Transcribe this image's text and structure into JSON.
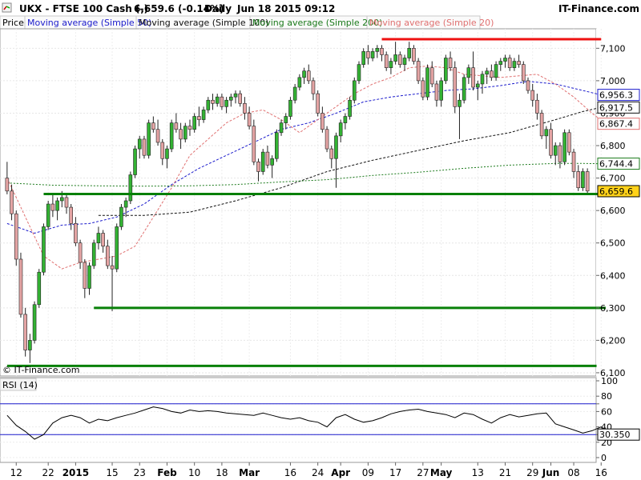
{
  "header": {
    "symbol": "UKX - FTSE 100 Cash (-)",
    "quote": "6,659.6 (-0.14%)",
    "period": "Daily",
    "datetime": "Jun 18 2015 09:12",
    "brand": "IT-Finance.com"
  },
  "legend": [
    {
      "label": "Price",
      "color": "#000000"
    },
    {
      "label": "Moving average (Simple 50)",
      "color": "#1a1acc"
    },
    {
      "label": "Moving average (Simple 100)",
      "color": "#111111"
    },
    {
      "label": "Moving average (Simple 200)",
      "color": "#1b7a1b"
    },
    {
      "label": "Moving average (Simple 20)",
      "color": "#e07070"
    }
  ],
  "copyright": "© IT-Finance.com",
  "rsi_label": "RSI (14)",
  "colors": {
    "up": "#33b233",
    "down": "#e4a4a4",
    "support": "#088008",
    "resistance": "#ee1111",
    "last_price_bg": "#ffd21a"
  },
  "chart_data": {
    "type": "candlestick",
    "price_axis": {
      "ticks": [
        6100,
        6200,
        6300,
        6400,
        6500,
        6600,
        6700,
        6800,
        6900,
        7000,
        7100
      ],
      "tick_labels": [
        "6,100",
        "6,200",
        "6,300",
        "6,400",
        "6,500",
        "6,600",
        "6,700",
        "6,800",
        "6,900",
        "7,000",
        "7,100"
      ],
      "range": [
        6090,
        7160
      ]
    },
    "x_labels": [
      {
        "text": "12",
        "bold": false,
        "idx": 2
      },
      {
        "text": "22",
        "bold": false,
        "idx": 9
      },
      {
        "text": "2015",
        "bold": true,
        "idx": 15
      },
      {
        "text": "15",
        "bold": false,
        "idx": 23
      },
      {
        "text": "23",
        "bold": false,
        "idx": 29
      },
      {
        "text": "Feb",
        "bold": true,
        "idx": 35
      },
      {
        "text": "10",
        "bold": false,
        "idx": 41
      },
      {
        "text": "18",
        "bold": false,
        "idx": 47
      },
      {
        "text": "Mar",
        "bold": true,
        "idx": 53
      },
      {
        "text": "16",
        "bold": false,
        "idx": 62
      },
      {
        "text": "24",
        "bold": false,
        "idx": 68
      },
      {
        "text": "Apr",
        "bold": true,
        "idx": 73
      },
      {
        "text": "09",
        "bold": false,
        "idx": 79
      },
      {
        "text": "17",
        "bold": false,
        "idx": 85
      },
      {
        "text": "27",
        "bold": false,
        "idx": 91
      },
      {
        "text": "May",
        "bold": true,
        "idx": 95
      },
      {
        "text": "13",
        "bold": false,
        "idx": 103
      },
      {
        "text": "21",
        "bold": false,
        "idx": 109
      },
      {
        "text": "29",
        "bold": false,
        "idx": 115
      },
      {
        "text": "Jun",
        "bold": true,
        "idx": 119
      },
      {
        "text": "08",
        "bold": false,
        "idx": 124
      },
      {
        "text": "16",
        "bold": false,
        "idx": 130
      }
    ],
    "candles": [
      [
        6700,
        6750,
        6650,
        6660
      ],
      [
        6660,
        6680,
        6570,
        6590
      ],
      [
        6590,
        6600,
        6430,
        6450
      ],
      [
        6450,
        6470,
        6270,
        6280
      ],
      [
        6280,
        6300,
        6150,
        6170
      ],
      [
        6170,
        6220,
        6130,
        6200
      ],
      [
        6200,
        6320,
        6190,
        6310
      ],
      [
        6310,
        6420,
        6300,
        6410
      ],
      [
        6410,
        6560,
        6400,
        6550
      ],
      [
        6550,
        6630,
        6540,
        6620
      ],
      [
        6620,
        6650,
        6580,
        6600
      ],
      [
        6600,
        6640,
        6570,
        6630
      ],
      [
        6630,
        6660,
        6610,
        6640
      ],
      [
        6640,
        6650,
        6590,
        6610
      ],
      [
        6610,
        6620,
        6540,
        6560
      ],
      [
        6560,
        6580,
        6490,
        6500
      ],
      [
        6500,
        6510,
        6420,
        6440
      ],
      [
        6440,
        6450,
        6330,
        6360
      ],
      [
        6360,
        6440,
        6340,
        6430
      ],
      [
        6430,
        6510,
        6420,
        6500
      ],
      [
        6500,
        6550,
        6480,
        6530
      ],
      [
        6530,
        6540,
        6470,
        6490
      ],
      [
        6490,
        6510,
        6420,
        6430
      ],
      [
        6430,
        6460,
        6290,
        6420
      ],
      [
        6420,
        6560,
        6410,
        6550
      ],
      [
        6550,
        6620,
        6540,
        6610
      ],
      [
        6610,
        6640,
        6580,
        6630
      ],
      [
        6630,
        6720,
        6620,
        6710
      ],
      [
        6710,
        6800,
        6700,
        6790
      ],
      [
        6790,
        6830,
        6760,
        6820
      ],
      [
        6820,
        6830,
        6760,
        6770
      ],
      [
        6770,
        6880,
        6760,
        6870
      ],
      [
        6870,
        6890,
        6840,
        6850
      ],
      [
        6850,
        6880,
        6800,
        6810
      ],
      [
        6810,
        6820,
        6740,
        6760
      ],
      [
        6760,
        6800,
        6730,
        6790
      ],
      [
        6790,
        6880,
        6780,
        6870
      ],
      [
        6870,
        6900,
        6840,
        6850
      ],
      [
        6850,
        6870,
        6790,
        6820
      ],
      [
        6820,
        6870,
        6810,
        6860
      ],
      [
        6860,
        6880,
        6830,
        6850
      ],
      [
        6850,
        6900,
        6840,
        6890
      ],
      [
        6890,
        6920,
        6860,
        6880
      ],
      [
        6880,
        6920,
        6870,
        6910
      ],
      [
        6910,
        6950,
        6900,
        6940
      ],
      [
        6940,
        6960,
        6910,
        6930
      ],
      [
        6930,
        6960,
        6920,
        6950
      ],
      [
        6950,
        6960,
        6910,
        6920
      ],
      [
        6920,
        6950,
        6900,
        6940
      ],
      [
        6940,
        6960,
        6920,
        6950
      ],
      [
        6950,
        6970,
        6930,
        6960
      ],
      [
        6960,
        6970,
        6920,
        6930
      ],
      [
        6930,
        6950,
        6880,
        6900
      ],
      [
        6900,
        6920,
        6850,
        6860
      ],
      [
        6860,
        6880,
        6740,
        6750
      ],
      [
        6750,
        6760,
        6690,
        6720
      ],
      [
        6720,
        6790,
        6710,
        6780
      ],
      [
        6780,
        6800,
        6730,
        6740
      ],
      [
        6740,
        6770,
        6700,
        6760
      ],
      [
        6760,
        6850,
        6750,
        6840
      ],
      [
        6840,
        6880,
        6830,
        6870
      ],
      [
        6870,
        6900,
        6850,
        6890
      ],
      [
        6890,
        6950,
        6880,
        6940
      ],
      [
        6940,
        6990,
        6930,
        6980
      ],
      [
        6980,
        7020,
        6970,
        7010
      ],
      [
        7010,
        7040,
        6990,
        7030
      ],
      [
        7030,
        7050,
        6990,
        7000
      ],
      [
        7000,
        7010,
        6940,
        6960
      ],
      [
        6960,
        6970,
        6890,
        6900
      ],
      [
        6900,
        6920,
        6840,
        6850
      ],
      [
        6850,
        6860,
        6780,
        6790
      ],
      [
        6790,
        6800,
        6730,
        6760
      ],
      [
        6760,
        6840,
        6670,
        6830
      ],
      [
        6830,
        6880,
        6810,
        6870
      ],
      [
        6870,
        6900,
        6850,
        6890
      ],
      [
        6890,
        6950,
        6880,
        6940
      ],
      [
        6940,
        7010,
        6930,
        7000
      ],
      [
        7000,
        7060,
        6990,
        7050
      ],
      [
        7050,
        7100,
        7040,
        7090
      ],
      [
        7090,
        7110,
        7050,
        7070
      ],
      [
        7070,
        7100,
        7060,
        7090
      ],
      [
        7090,
        7110,
        7070,
        7100
      ],
      [
        7100,
        7110,
        7060,
        7080
      ],
      [
        7080,
        7090,
        7030,
        7040
      ],
      [
        7040,
        7070,
        7020,
        7060
      ],
      [
        7060,
        7120,
        7050,
        7080
      ],
      [
        7080,
        7090,
        7040,
        7050
      ],
      [
        7050,
        7080,
        7030,
        7070
      ],
      [
        7070,
        7120,
        7060,
        7100
      ],
      [
        7100,
        7110,
        7050,
        7060
      ],
      [
        7060,
        7070,
        6990,
        7000
      ],
      [
        7000,
        7010,
        6940,
        6950
      ],
      [
        6950,
        7050,
        6940,
        7040
      ],
      [
        7040,
        7060,
        6980,
        6990
      ],
      [
        6990,
        7000,
        6920,
        6940
      ],
      [
        6940,
        7010,
        6920,
        7000
      ],
      [
        7000,
        7080,
        6990,
        7070
      ],
      [
        7070,
        7090,
        7030,
        7040
      ],
      [
        7040,
        7060,
        6900,
        6920
      ],
      [
        6920,
        6960,
        6820,
        6940
      ],
      [
        6940,
        7020,
        6930,
        7010
      ],
      [
        7010,
        7050,
        6990,
        7040
      ],
      [
        7040,
        7090,
        6970,
        6980
      ],
      [
        6980,
        7000,
        6940,
        6990
      ],
      [
        6990,
        7030,
        6960,
        7020
      ],
      [
        7020,
        7040,
        6990,
        7030
      ],
      [
        7030,
        7050,
        7000,
        7010
      ],
      [
        7010,
        7060,
        7000,
        7050
      ],
      [
        7050,
        7070,
        7030,
        7060
      ],
      [
        7060,
        7080,
        7040,
        7070
      ],
      [
        7070,
        7080,
        7030,
        7040
      ],
      [
        7040,
        7070,
        7030,
        7060
      ],
      [
        7060,
        7080,
        7040,
        7050
      ],
      [
        7050,
        7060,
        6990,
        7000
      ],
      [
        7000,
        7010,
        6960,
        6970
      ],
      [
        6970,
        6990,
        6920,
        6940
      ],
      [
        6940,
        6960,
        6880,
        6900
      ],
      [
        6900,
        6910,
        6820,
        6830
      ],
      [
        6830,
        6860,
        6790,
        6850
      ],
      [
        6850,
        6870,
        6760,
        6770
      ],
      [
        6770,
        6810,
        6740,
        6800
      ],
      [
        6800,
        6810,
        6730,
        6750
      ],
      [
        6750,
        6850,
        6740,
        6840
      ],
      [
        6840,
        6850,
        6770,
        6780
      ],
      [
        6780,
        6790,
        6700,
        6720
      ],
      [
        6720,
        6740,
        6660,
        6670
      ],
      [
        6670,
        6730,
        6660,
        6720
      ],
      [
        6720,
        6730,
        6650,
        6660
      ]
    ],
    "ma_series": [
      {
        "name": "Moving average (Simple 50)",
        "color": "#1a1acc",
        "dash": "3,2",
        "x": [
          0,
          6,
          12,
          18,
          24,
          30,
          36,
          42,
          48,
          54,
          60,
          66,
          72,
          78,
          84,
          90,
          96,
          102,
          108,
          114,
          120,
          126,
          130
        ],
        "y": [
          6560,
          6530,
          6555,
          6560,
          6580,
          6620,
          6680,
          6730,
          6770,
          6810,
          6850,
          6870,
          6900,
          6935,
          6950,
          6960,
          6970,
          6975,
          6985,
          6998,
          6990,
          6970,
          6956
        ]
      },
      {
        "name": "Moving average (Simple 100)",
        "color": "#111111",
        "dash": "3,2",
        "x": [
          20,
          30,
          40,
          50,
          60,
          70,
          80,
          90,
          100,
          110,
          120,
          126,
          130
        ],
        "y": [
          6585,
          6585,
          6595,
          6630,
          6670,
          6720,
          6755,
          6785,
          6815,
          6840,
          6880,
          6905,
          6918
        ]
      },
      {
        "name": "Moving average (Simple 200)",
        "color": "#1b7a1b",
        "dash": "2,2",
        "x": [
          0,
          10,
          20,
          30,
          40,
          50,
          60,
          70,
          80,
          90,
          100,
          110,
          120,
          126,
          130
        ],
        "y": [
          6685,
          6678,
          6676,
          6675,
          6676,
          6680,
          6688,
          6695,
          6708,
          6718,
          6730,
          6740,
          6745,
          6745,
          6744
        ]
      },
      {
        "name": "Moving average (Simple 20)",
        "color": "#e07070",
        "dash": "3,2",
        "x": [
          0,
          4,
          8,
          12,
          16,
          20,
          24,
          28,
          32,
          36,
          40,
          44,
          48,
          52,
          56,
          60,
          64,
          68,
          72,
          76,
          80,
          84,
          88,
          92,
          96,
          100,
          104,
          108,
          112,
          116,
          120,
          124,
          128,
          131
        ],
        "y": [
          6700,
          6580,
          6460,
          6420,
          6440,
          6450,
          6460,
          6490,
          6580,
          6670,
          6770,
          6820,
          6870,
          6900,
          6910,
          6880,
          6840,
          6880,
          6920,
          6960,
          6990,
          7010,
          7040,
          7045,
          7040,
          7020,
          7015,
          7010,
          7015,
          7020,
          6990,
          6950,
          6900,
          6867
        ]
      }
    ],
    "support_lines": [
      {
        "value": 6651,
        "x_from": 8,
        "x_to": 131
      },
      {
        "value": 6300,
        "x_from": 19,
        "x_to": 131
      },
      {
        "value": 6121,
        "x_from": 0,
        "x_to": 129
      }
    ],
    "resistance_lines": [
      {
        "value": 7128,
        "x_from": 82,
        "x_to": 130
      }
    ],
    "right_labels": [
      {
        "text": "6,956.3",
        "value": 6956.3,
        "color": "#1a1acc",
        "bg": "#ffffff"
      },
      {
        "text": "6,917.5",
        "value": 6917.5,
        "color": "#111111",
        "bg": "#ffffff"
      },
      {
        "text": "6,867.4",
        "value": 6867.4,
        "color": "#e07070",
        "bg": "#ffffff"
      },
      {
        "text": "6,744.4",
        "value": 6744.4,
        "color": "#1b7a1b",
        "bg": "#ffffff"
      },
      {
        "text": "6,659.6",
        "value": 6659.6,
        "color": "#000000",
        "bg": "#ffd21a"
      }
    ],
    "rsi": {
      "ticks": [
        0,
        20,
        30,
        40,
        60,
        70,
        80,
        100
      ],
      "tick_labels": [
        "0",
        "20",
        "",
        "40",
        "60",
        "",
        "80",
        "100"
      ],
      "levels": [
        30,
        70
      ],
      "last_label": "30.350",
      "x": [
        0,
        2,
        4,
        6,
        8,
        10,
        12,
        14,
        16,
        18,
        20,
        22,
        24,
        26,
        28,
        30,
        32,
        34,
        36,
        38,
        40,
        42,
        44,
        46,
        48,
        50,
        52,
        54,
        56,
        58,
        60,
        62,
        64,
        66,
        68,
        70,
        72,
        74,
        76,
        78,
        80,
        82,
        84,
        86,
        88,
        90,
        92,
        94,
        96,
        98,
        100,
        102,
        104,
        106,
        108,
        110,
        112,
        114,
        116,
        118,
        120,
        122,
        124,
        126,
        128,
        130,
        132
      ],
      "values": [
        55,
        42,
        34,
        24,
        30,
        45,
        52,
        55,
        52,
        45,
        50,
        48,
        52,
        55,
        58,
        62,
        66,
        64,
        60,
        58,
        62,
        60,
        61,
        60,
        58,
        57,
        56,
        55,
        58,
        55,
        52,
        50,
        52,
        48,
        46,
        40,
        52,
        56,
        50,
        46,
        48,
        52,
        57,
        60,
        62,
        63,
        60,
        58,
        56,
        52,
        58,
        56,
        50,
        45,
        52,
        56,
        53,
        55,
        57,
        58,
        44,
        40,
        36,
        32,
        35,
        40,
        30
      ]
    }
  }
}
